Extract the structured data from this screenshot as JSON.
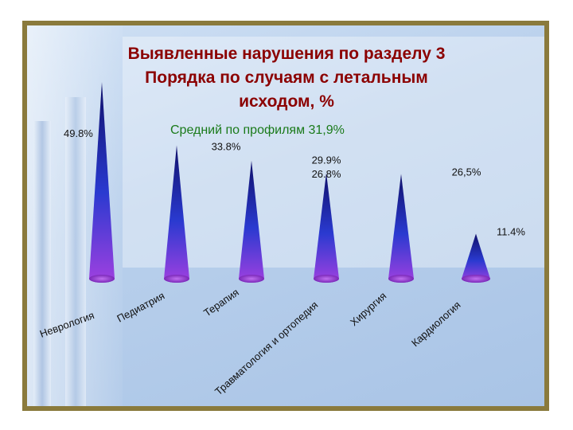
{
  "slide": {
    "title_lines": [
      "Выявленные нарушения по разделу 3",
      "Порядка по случаям с летальным",
      "исходом, %"
    ],
    "average_label": "Средний по профилям 31,9%",
    "colors": {
      "title": "#8b0000",
      "average": "#1a7a1a",
      "frame": "#8a7a3c",
      "cone_top": "#10106a",
      "cone_mid": "#2a3ad0",
      "cone_bottom": "#a040e0"
    }
  },
  "chart_data": {
    "type": "bar",
    "shape": "cone",
    "categories": [
      "Неврология",
      "Педиатрия",
      "Терапия",
      "Травматология и ортопедия",
      "Хирургия",
      "Кардиология"
    ],
    "values": [
      49.8,
      33.8,
      29.9,
      26.8,
      26.5,
      11.4
    ],
    "data_labels": [
      "49.8%",
      "33.8%",
      "29.9%",
      "26.8%",
      "26,5%",
      "11.4%"
    ],
    "ylim": [
      0,
      50
    ],
    "grid": false,
    "legend": "none"
  }
}
